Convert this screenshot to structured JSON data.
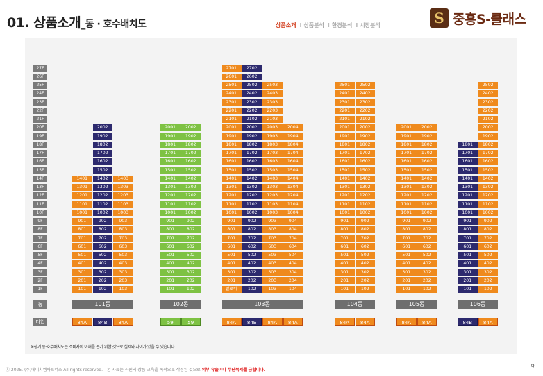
{
  "header": {
    "title_main": "01. 상품소개",
    "title_sub": "_동 · 호수배치도",
    "nav": [
      "상품소개",
      "상품분석",
      "환경분석",
      "시장분석"
    ],
    "nav_separator": "I",
    "logo_mark": "S",
    "logo_text": "중흥S-클래스"
  },
  "colors": {
    "orange": "#ef8a1d",
    "navy": "#2d2a6e",
    "green": "#7ec243",
    "label_gray": "#7a7a7a",
    "brand": "#6b2a12"
  },
  "floors": [
    "27F",
    "26F",
    "25F",
    "24F",
    "23F",
    "22F",
    "21F",
    "20F",
    "19F",
    "18F",
    "17F",
    "16F",
    "15F",
    "14F",
    "13F",
    "12F",
    "11F",
    "10F",
    "9F",
    "8F",
    "7F",
    "6F",
    "5F",
    "4F",
    "3F",
    "2F",
    "1F"
  ],
  "row_labels": {
    "building": "동",
    "type": "타입"
  },
  "buildings": [
    {
      "name": "101동",
      "lines": [
        {
          "suffix": "01",
          "color": "o",
          "from": 1,
          "to": 14,
          "type": "84A"
        },
        {
          "suffix": "02",
          "color": "n",
          "from": 1,
          "to": 20,
          "type": "84B"
        },
        {
          "suffix": "03",
          "color": "o",
          "from": 1,
          "to": 14,
          "type": "84A"
        }
      ]
    },
    {
      "name": "102동",
      "lines": [
        {
          "suffix": "01",
          "color": "g",
          "from": 1,
          "to": 20,
          "type": "59"
        },
        {
          "suffix": "02",
          "color": "g",
          "from": 1,
          "to": 20,
          "type": "59"
        }
      ]
    },
    {
      "name": "103동",
      "lines": [
        {
          "suffix": "01",
          "color": "o",
          "from": 1,
          "to": 27,
          "type": "84A",
          "first_floor_label": "필로티"
        },
        {
          "suffix": "02",
          "color": "n",
          "from": 1,
          "to": 27,
          "type": "84B"
        },
        {
          "suffix": "03",
          "color": "o",
          "from": 1,
          "to": 25,
          "type": "84A"
        },
        {
          "suffix": "04",
          "color": "o",
          "from": 1,
          "to": 20,
          "type": "84A"
        }
      ]
    },
    {
      "name": "104동",
      "lines": [
        {
          "suffix": "01",
          "color": "o",
          "from": 1,
          "to": 25,
          "type": "84A"
        },
        {
          "suffix": "02",
          "color": "o",
          "from": 1,
          "to": 25,
          "type": "84A"
        }
      ]
    },
    {
      "name": "105동",
      "lines": [
        {
          "suffix": "01",
          "color": "o",
          "from": 1,
          "to": 20,
          "type": "84A"
        },
        {
          "suffix": "02",
          "color": "o",
          "from": 1,
          "to": 20,
          "type": "84A"
        }
      ]
    },
    {
      "name": "106동",
      "lines": [
        {
          "suffix": "01",
          "color": "n",
          "from": 1,
          "to": 18,
          "type": "84B"
        },
        {
          "suffix": "02",
          "color": "o",
          "from": 1,
          "to": 25,
          "type": "84A"
        }
      ]
    }
  ],
  "note": "※상기 동·호수배치도는 소비자의 이해를 돕기 위한 것으로 실제와 차이가 있을 수 있습니다.",
  "footer": {
    "text": "ⓒ 2025. (주)에이치엠파트너스 All rights reserved. - 본 자료는 직원의 상품 교육을 목적으로 작성된 것으로 ",
    "warning": "외부 유출이나 무단복제를 금합니다."
  },
  "page_number": "9"
}
